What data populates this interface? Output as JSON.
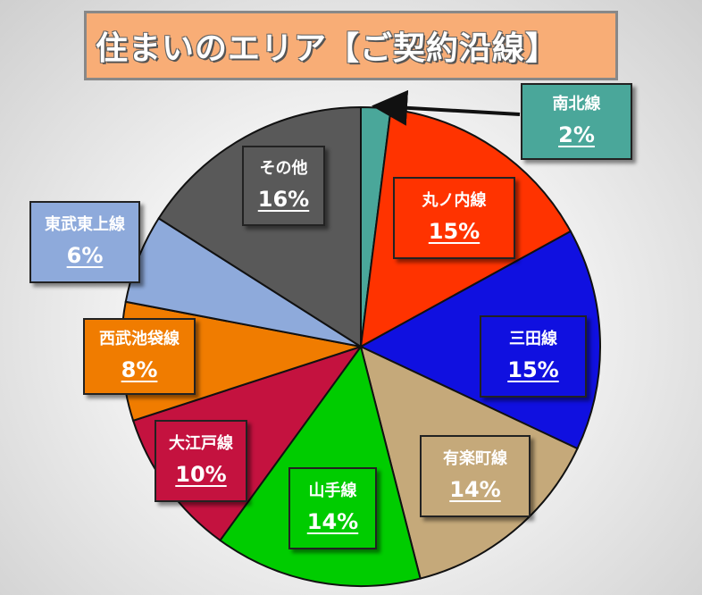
{
  "title": "住まいのエリア【ご契約沿線】",
  "chart_data": {
    "type": "pie",
    "title": "住まいのエリア【ご契約沿線】",
    "slices": [
      {
        "label": "南北線",
        "value": 2,
        "value_label": "2%",
        "color": "#4aa79a"
      },
      {
        "label": "丸ノ内線",
        "value": 15,
        "value_label": "15%",
        "color": "#ff3300"
      },
      {
        "label": "三田線",
        "value": 15,
        "value_label": "15%",
        "color": "#1010e0"
      },
      {
        "label": "有楽町線",
        "value": 14,
        "value_label": "14%",
        "color": "#c5a97a"
      },
      {
        "label": "山手線",
        "value": 14,
        "value_label": "14%",
        "color": "#00cc00"
      },
      {
        "label": "大江戸線",
        "value": 10,
        "value_label": "10%",
        "color": "#c4123f"
      },
      {
        "label": "西武池袋線",
        "value": 8,
        "value_label": "8%",
        "color": "#f07c00"
      },
      {
        "label": "東武東上線",
        "value": 6,
        "value_label": "6%",
        "color": "#8eaadb"
      },
      {
        "label": "その他",
        "value": 16,
        "value_label": "16%",
        "color": "#595959"
      }
    ],
    "start": "top",
    "direction": "clockwise"
  }
}
